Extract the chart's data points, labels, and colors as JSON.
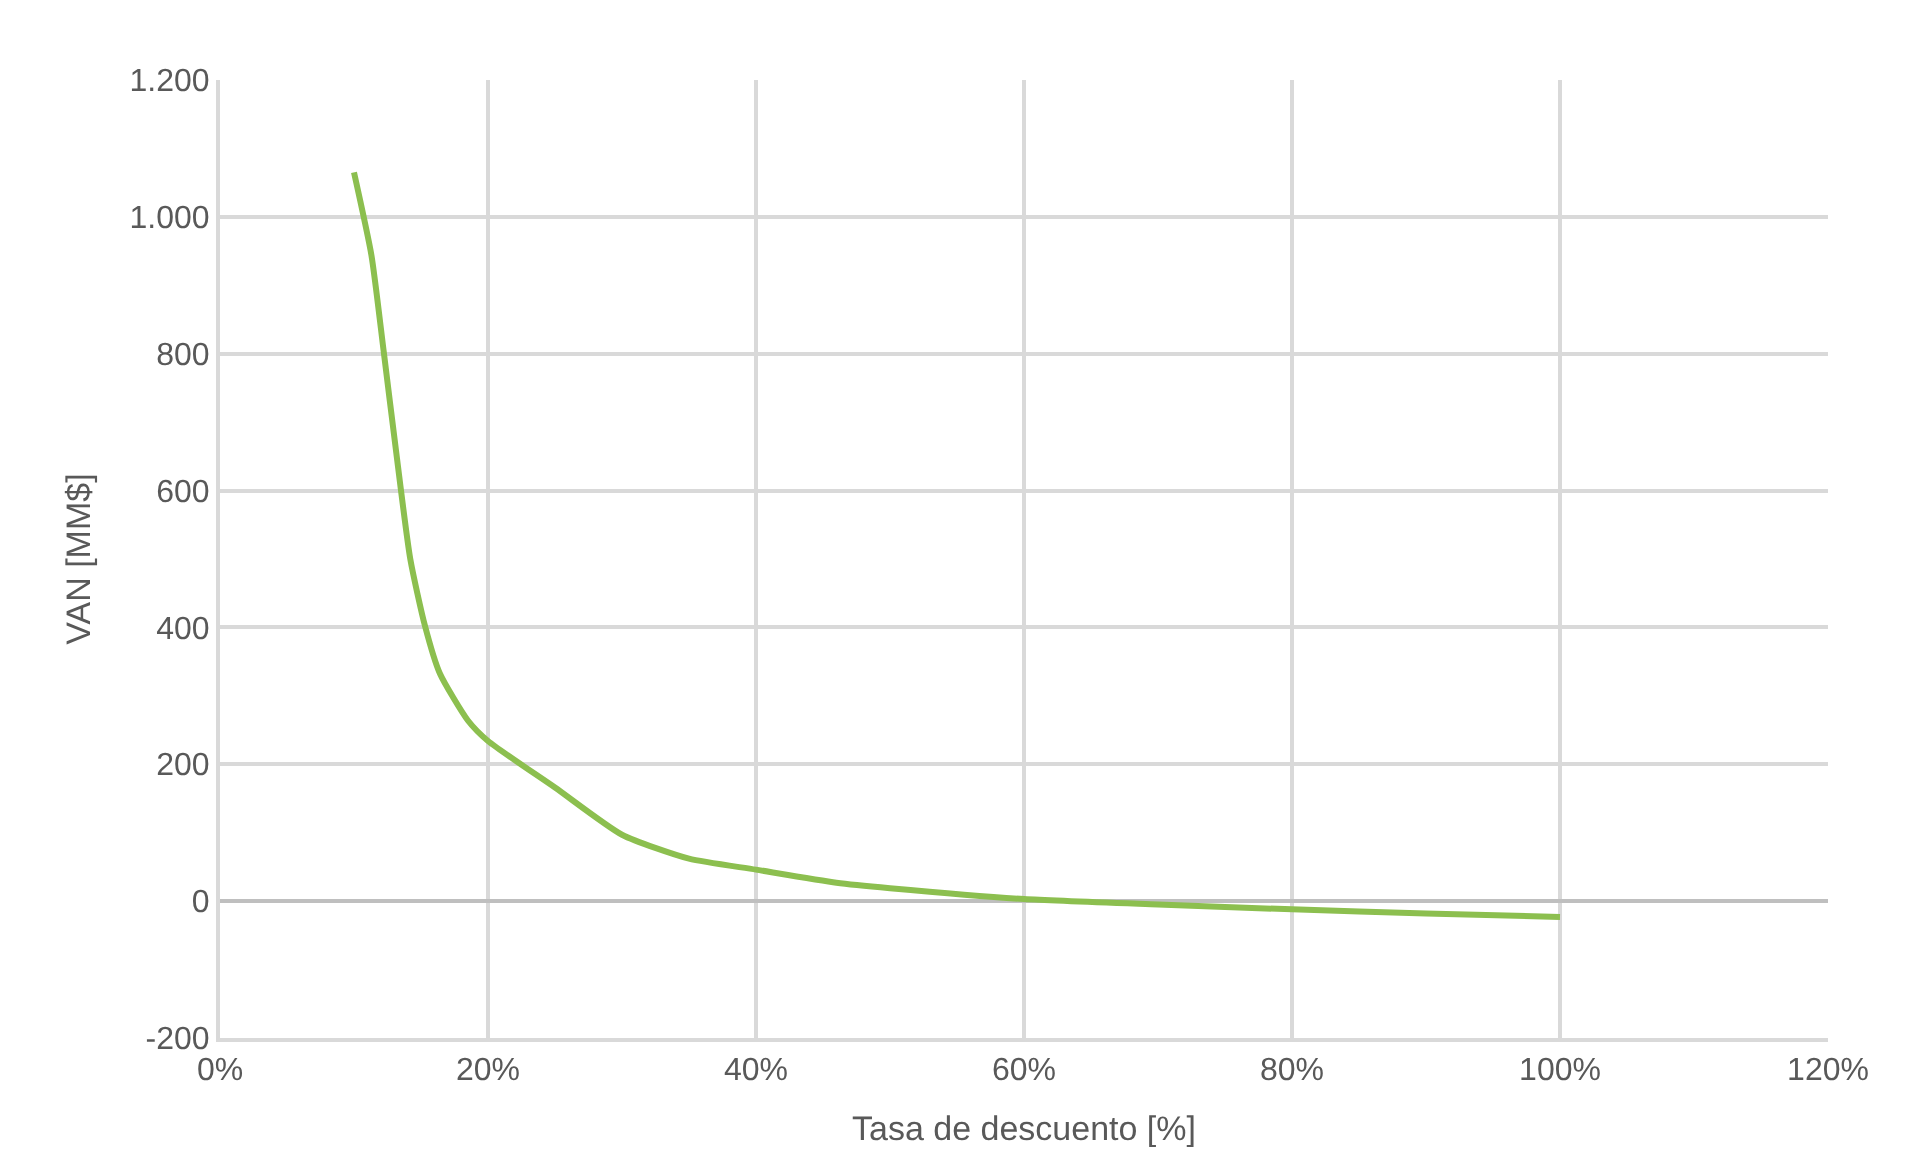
{
  "chart_data": {
    "type": "line",
    "xlabel": "Tasa de descuento [%]",
    "ylabel": "VAN [MM$]",
    "x": [
      10,
      11.3,
      12.2,
      13.2,
      14.2,
      15.3,
      16.4,
      18.5,
      20,
      25,
      30,
      35,
      40,
      46,
      50,
      60,
      70,
      80,
      90,
      100
    ],
    "series": [
      {
        "color": "#8cbf4f",
        "values": [
          1065,
          944,
          806,
          648,
          500,
          402,
          333,
          264,
          234,
          166,
          97,
          62,
          46,
          27,
          19,
          3,
          -5,
          -12,
          -18,
          -23
        ]
      }
    ],
    "xlim": [
      0,
      120
    ],
    "xticks": [
      {
        "value": 0,
        "label": "0%"
      },
      {
        "value": 20,
        "label": "20%"
      },
      {
        "value": 40,
        "label": "40%"
      },
      {
        "value": 60,
        "label": "60%"
      },
      {
        "value": 80,
        "label": "80%"
      },
      {
        "value": 100,
        "label": "100%"
      },
      {
        "value": 120,
        "label": "120%"
      }
    ],
    "ylim": [
      -200,
      1200
    ],
    "yticks": [
      {
        "value": -200,
        "label": "-200"
      },
      {
        "value": 0,
        "label": "0"
      },
      {
        "value": 200,
        "label": "200"
      },
      {
        "value": 400,
        "label": "400"
      },
      {
        "value": 600,
        "label": "600"
      },
      {
        "value": 800,
        "label": "800"
      },
      {
        "value": 1000,
        "label": "1.000"
      },
      {
        "value": 1200,
        "label": "1.200"
      }
    ],
    "grid": true,
    "marker": "none",
    "line_style": "solid"
  }
}
